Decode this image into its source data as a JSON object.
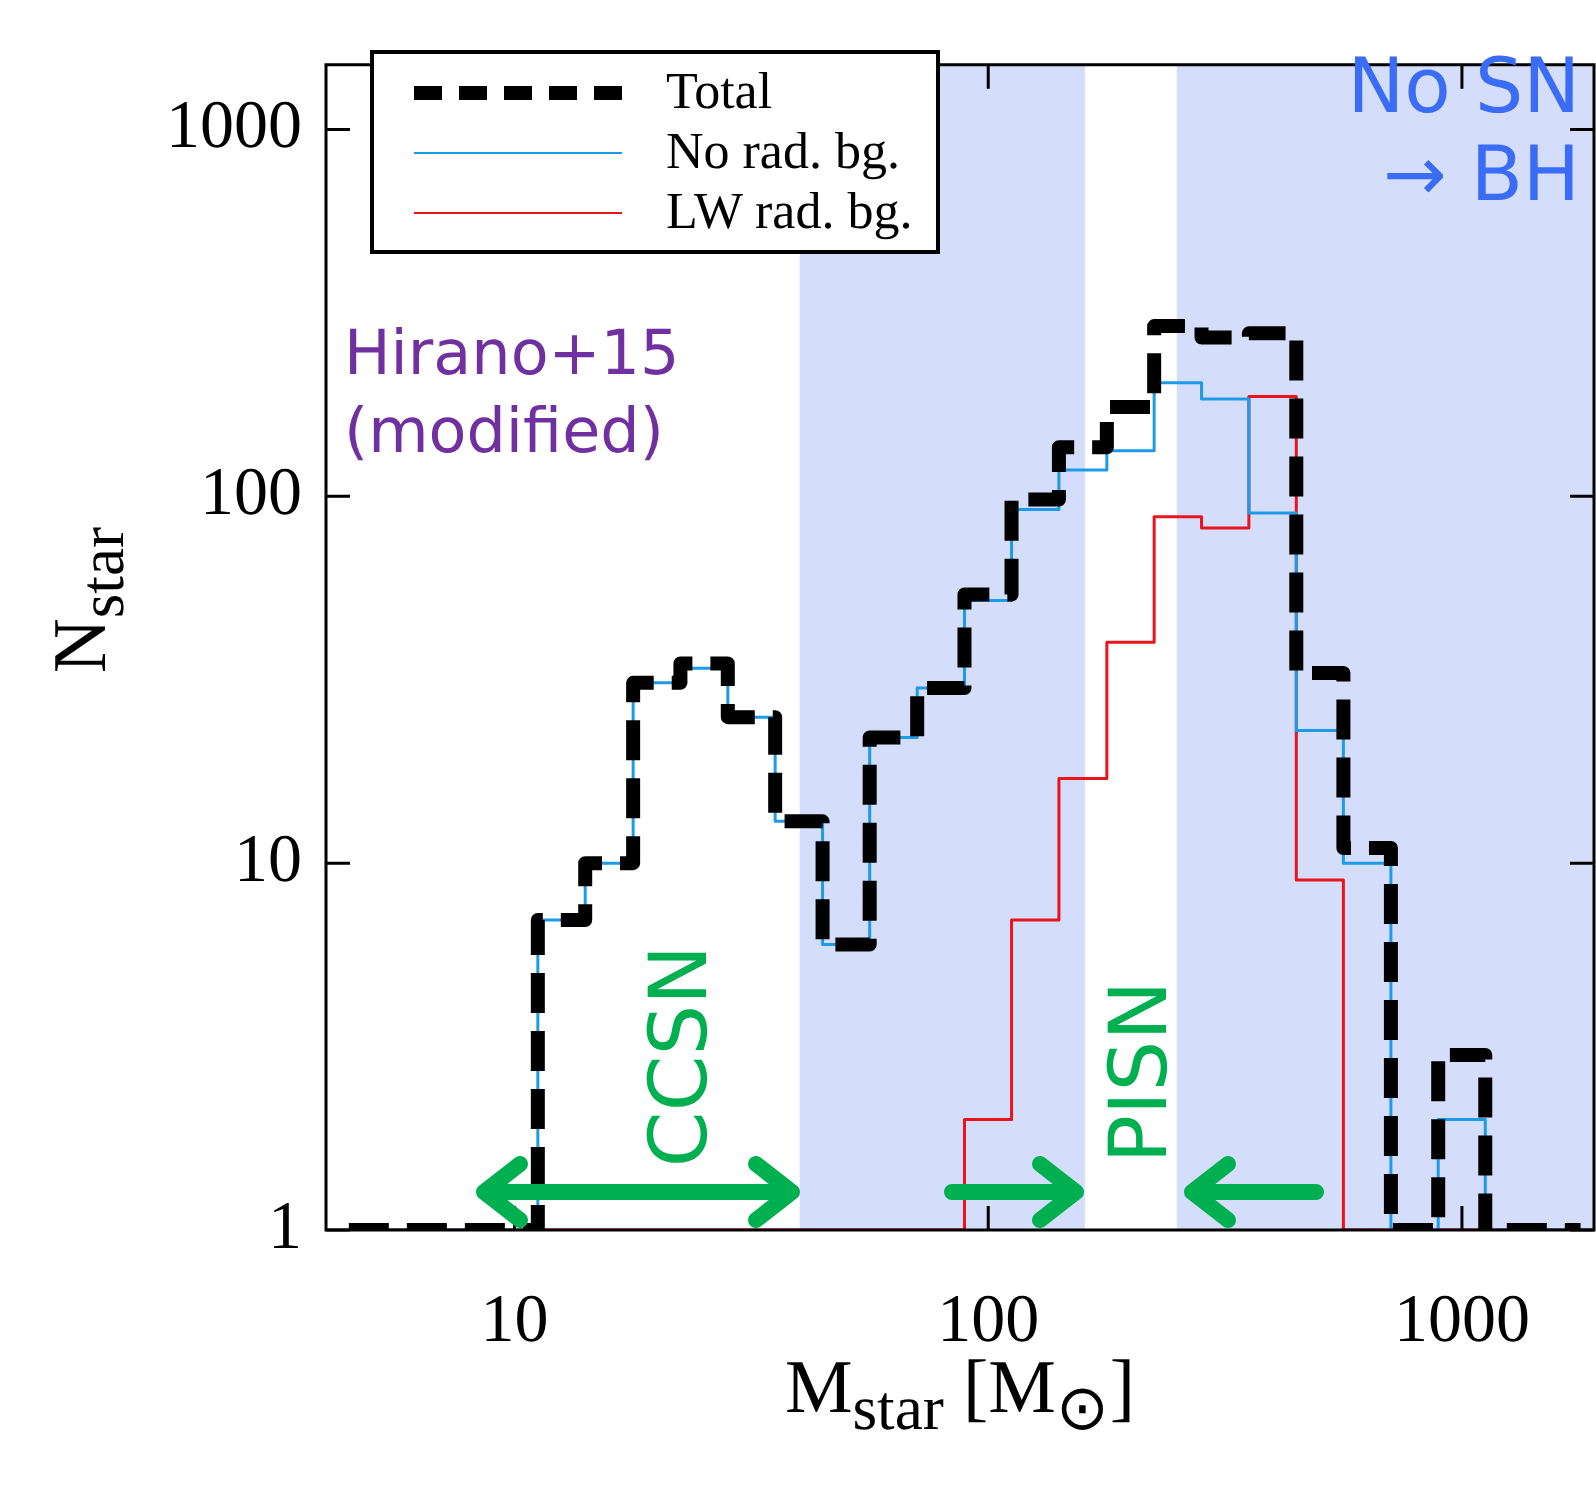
{
  "chart_data": {
    "type": "histogram",
    "xlabel": "M$_{star}$ [M$_{⊙}$]",
    "ylabel": "N$_{star}$",
    "bins": [
      4.47,
      5.62,
      7.08,
      8.91,
      11.2,
      14.1,
      17.8,
      22.4,
      28.2,
      35.5,
      44.7,
      56.2,
      70.8,
      89.1,
      112,
      141,
      178,
      224,
      282,
      355,
      447,
      562,
      708,
      891,
      1120,
      1410,
      1780
    ],
    "series": [
      {
        "name": "Total",
        "color": "#000000",
        "line_style": "dashed",
        "values": [
          1,
          1,
          1,
          1,
          7,
          10,
          31,
          35,
          25,
          13,
          6,
          22,
          30,
          54,
          98,
          136,
          175,
          291,
          271,
          278,
          33,
          11,
          1,
          3,
          1,
          1
        ]
      },
      {
        "name": "No rad. bg.",
        "color": "#1e9be8",
        "values": [
          1,
          1,
          1,
          1,
          7,
          10,
          31,
          34,
          25,
          13,
          6,
          22,
          30,
          52,
          92,
          118,
          133,
          204,
          184,
          90,
          23,
          10,
          1,
          2,
          1,
          1
        ]
      },
      {
        "name": "LW rad. bg.",
        "color": "#e8141e",
        "values": [
          1,
          1,
          1,
          1,
          1,
          1,
          1,
          1,
          1,
          1,
          1,
          1,
          1,
          2,
          7,
          17,
          40,
          88,
          82,
          187,
          9,
          1,
          1,
          1,
          1,
          1
        ]
      }
    ],
    "xlim": [
      4,
      1900
    ],
    "ylim": [
      1,
      1500
    ],
    "xticks": [
      10,
      100,
      1000
    ],
    "yticks": [
      1,
      10,
      100,
      1000
    ],
    "log": "xy",
    "grid": false,
    "legend": "top left",
    "bands": [
      {
        "axis": "x",
        "from": 40,
        "to": 160,
        "color": "#d4defa"
      },
      {
        "axis": "x",
        "from": 250,
        "to": 1900,
        "color": "#d4defa"
      }
    ],
    "annotations": [
      "Hirano+15\n(modified)",
      "No SN\n→ BH",
      "CCSN",
      "PISN"
    ]
  }
}
